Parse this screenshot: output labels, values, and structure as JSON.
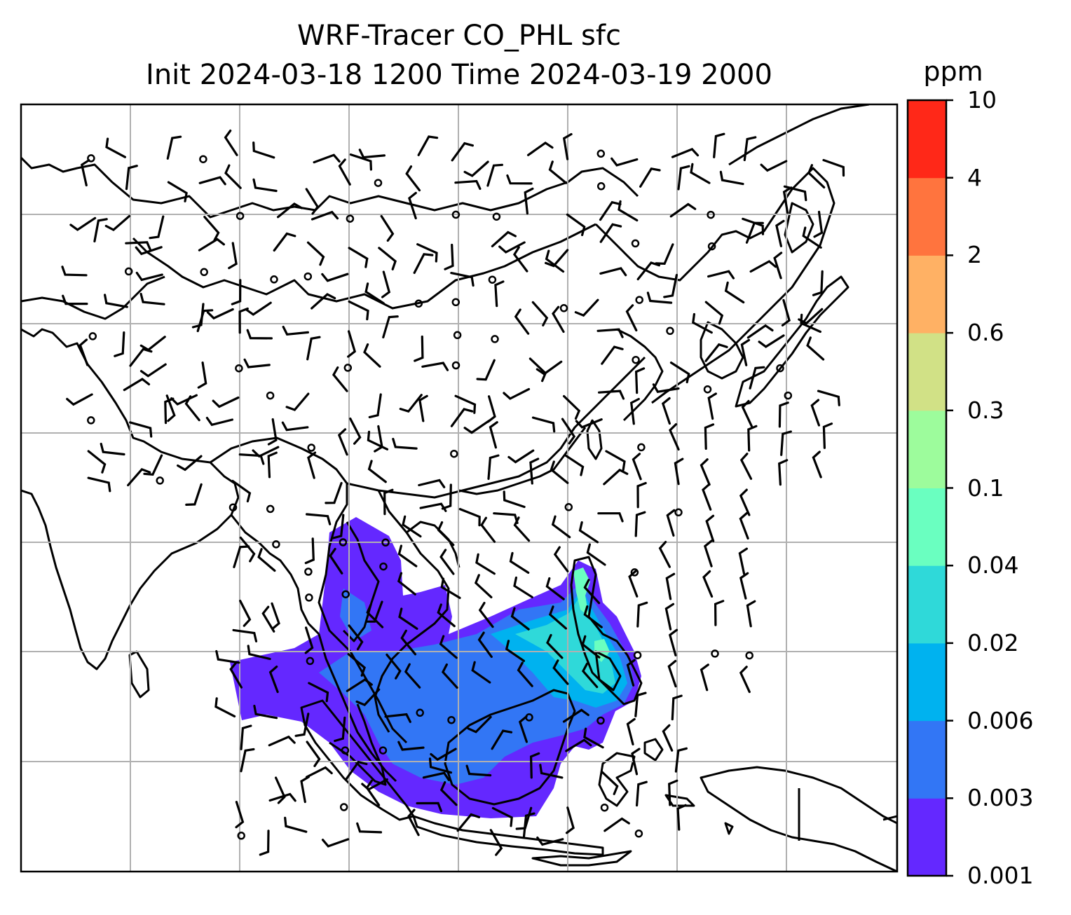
{
  "title": {
    "line1": "WRF-Tracer CO_PHL sfc",
    "line2": "Init 2024-03-18 1200 Time 2024-03-19 2000"
  },
  "colorbar": {
    "unit": "ppm",
    "levels": [
      "0.001",
      "0.003",
      "0.006",
      "0.02",
      "0.04",
      "0.1",
      "0.3",
      "0.6",
      "2",
      "4",
      "10"
    ],
    "colors": [
      "#6428ff",
      "#3276f5",
      "#00b2ef",
      "#2fd9d9",
      "#6affc0",
      "#9dfc9c",
      "#d1e186",
      "#ffb164",
      "#ff743e",
      "#ff2818"
    ]
  },
  "map": {
    "projection": "lat-lon",
    "gridlines": true,
    "coastlines": true,
    "wind_barbs": true
  }
}
